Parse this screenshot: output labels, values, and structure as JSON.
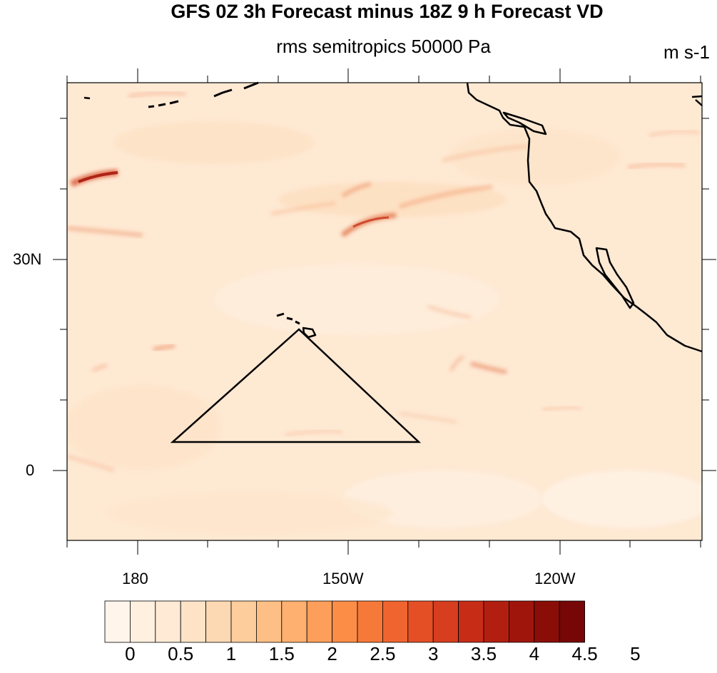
{
  "title": "GFS 0Z 3h Forecast minus 18Z 9 h Forecast VD",
  "subtitle": "rms semitropics 50000 Pa",
  "units": "m s-1",
  "lat_labels": [
    "30N",
    "0"
  ],
  "lon_labels": [
    "180",
    "150W",
    "120W"
  ],
  "colorbar": {
    "labels": [
      "0",
      "0.5",
      "1",
      "1.5",
      "2",
      "2.5",
      "3",
      "3.5",
      "4",
      "4.5",
      "5"
    ],
    "colors": [
      "#fff5eb",
      "#fff0e0",
      "#feead5",
      "#fee3c6",
      "#fdd9b3",
      "#fdcd9c",
      "#fdbf85",
      "#fdb06f",
      "#fd9f5a",
      "#fc8d47",
      "#f7793a",
      "#f0652f",
      "#e54f26",
      "#d73e1f",
      "#c72c17",
      "#b21f10",
      "#9f150c",
      "#8a0d08",
      "#760706"
    ]
  },
  "chart_data": {
    "type": "heatmap",
    "title": "GFS 0Z 3h Forecast minus 18Z 9 h Forecast VD",
    "subtitle": "rms semitropics 50000 Pa",
    "units": "m s-1",
    "projection": "cylindrical equidistant",
    "lon_range": [
      170,
      -100
    ],
    "lat_range": [
      -10,
      55
    ],
    "lat_ticks": [
      "30N",
      "0"
    ],
    "lon_ticks": [
      "180",
      "150W",
      "120W"
    ],
    "value_range": [
      0,
      5
    ],
    "contour_levels": [
      0,
      0.25,
      0.5,
      0.75,
      1,
      1.25,
      1.5,
      1.75,
      2,
      2.25,
      2.5,
      2.75,
      3,
      3.25,
      3.5,
      3.75,
      4,
      4.25,
      4.5,
      4.75,
      5
    ],
    "typical_field_value": 0.5,
    "max_features": [
      {
        "lat": 42,
        "lon": 175,
        "value": 4.5
      },
      {
        "lat": 36,
        "lon": -146,
        "value": 3.5
      },
      {
        "lat": 14,
        "lon": -129,
        "value": 2.5
      }
    ],
    "overlay_triangle_vertices": [
      {
        "lat": 20,
        "lon": -157
      },
      {
        "lat": 4,
        "lon": -175
      },
      {
        "lat": 4,
        "lon": -140
      }
    ]
  }
}
